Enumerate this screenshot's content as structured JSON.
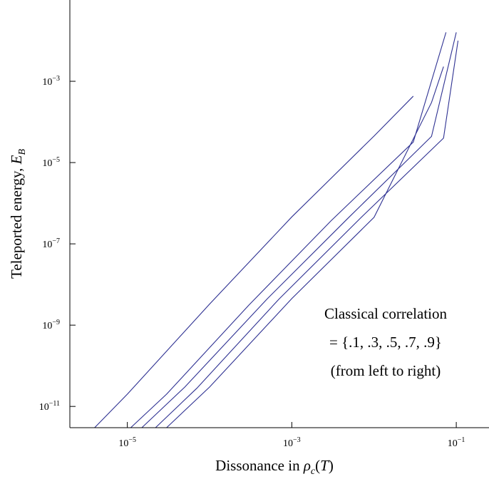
{
  "chart_data": {
    "type": "line",
    "xlabel": "Dissonance in ρ_c(T)",
    "xlabel_main": "Dissonance in ",
    "xlabel_rho": "ρ",
    "xlabel_sub": "c",
    "xlabel_open": "(",
    "xlabel_T": "T",
    "xlabel_close": ")",
    "ylabel": "Teleported energy, E_B",
    "ylabel_main": "Teleported energy, ",
    "ylabel_E": "E",
    "ylabel_sub": "B",
    "x_scale": "log",
    "y_scale": "log",
    "xlim": [
      2e-06,
      0.25
    ],
    "ylim": [
      3e-12,
      0.1
    ],
    "grid": false,
    "x_ticks": [
      {
        "value": 1e-05,
        "base": "10",
        "exp": "−5"
      },
      {
        "value": 0.001,
        "base": "10",
        "exp": "−3"
      },
      {
        "value": 0.1,
        "base": "10",
        "exp": "−1"
      }
    ],
    "y_ticks": [
      {
        "value": 1e-11,
        "base": "10",
        "exp": "−11"
      },
      {
        "value": 1e-09,
        "base": "10",
        "exp": "−9"
      },
      {
        "value": 1e-07,
        "base": "10",
        "exp": "−7"
      },
      {
        "value": 1e-05,
        "base": "10",
        "exp": "−5"
      },
      {
        "value": 0.001,
        "base": "10",
        "exp": "−3"
      }
    ],
    "line_color": "#2e3192",
    "series": [
      {
        "x": [
          4e-06,
          1e-05,
          0.0001,
          0.001,
          0.01,
          0.03
        ],
        "y": [
          2.8e-12,
          2e-11,
          3.3e-09,
          4.6e-07,
          4.5e-05,
          0.00043
        ]
      },
      {
        "x": [
          1.1e-05,
          3e-05,
          0.0003,
          0.003,
          0.03,
          0.075
        ],
        "y": [
          2.8e-12,
          2e-11,
          3.1e-09,
          3.7e-07,
          3.2e-05,
          0.016
        ]
      },
      {
        "x": [
          1.5e-05,
          5e-05,
          0.0005,
          0.005,
          0.05,
          0.1
        ],
        "y": [
          2.8e-12,
          3e-11,
          4.4e-09,
          4.6e-07,
          4.4e-05,
          0.016
        ]
      },
      {
        "x": [
          2.2e-05,
          7e-05,
          0.0007,
          0.007,
          0.07,
          0.105
        ],
        "y": [
          2.8e-12,
          2.8e-11,
          4.4e-09,
          4.5e-07,
          4e-05,
          0.01
        ]
      },
      {
        "x": [
          3e-05,
          0.0001,
          0.001,
          0.01,
          0.05,
          0.07
        ],
        "y": [
          2.8e-12,
          3e-11,
          4.5e-09,
          4.5e-07,
          0.0003,
          0.0023
        ]
      }
    ],
    "annotation": [
      "Classical correlation",
      "= {.1, .3, .5, .7, .9}",
      "(from left to right)"
    ]
  }
}
